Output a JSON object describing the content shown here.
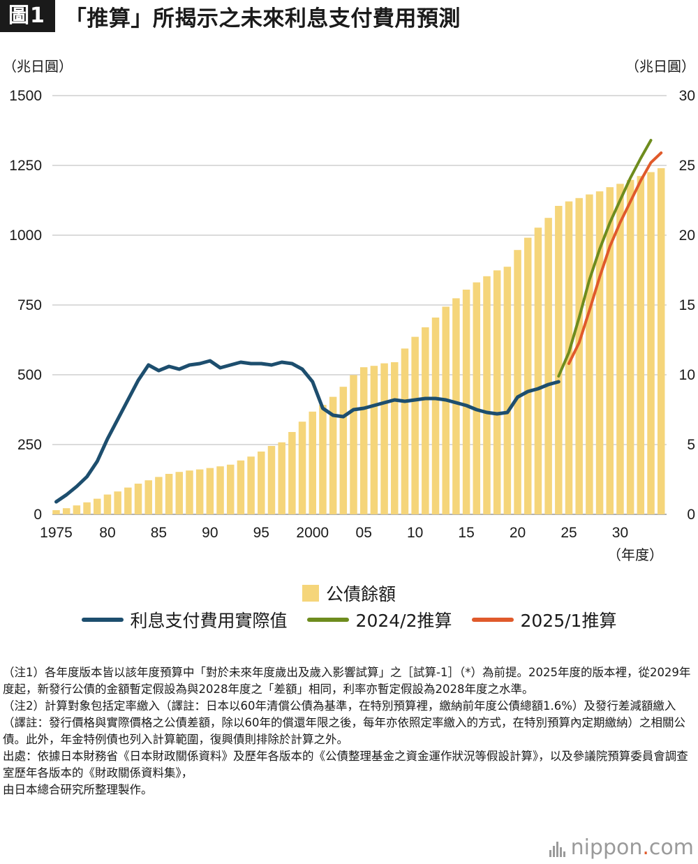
{
  "header": {
    "badge": "圖1",
    "title": "「推算」所揭示之未來利息支付費用預測"
  },
  "axes": {
    "left_unit": "（兆日圓）",
    "right_unit": "（兆日圓）",
    "x_unit": "（年度）"
  },
  "legend": {
    "bar_label": "公債餘額",
    "line_actual_label": "利息支付費用實際值",
    "line_2024_label": "2024/2推算",
    "line_2025_label": "2025/1推算"
  },
  "colors": {
    "bar": "#f5d57a",
    "actual": "#1d4e6e",
    "est_2024": "#6e8c1e",
    "est_2025": "#e05a2b",
    "grid": "#cfcfcf"
  },
  "chart_data": {
    "type": "bar+line",
    "x_range": [
      1975,
      2034
    ],
    "left_ylim": [
      0,
      1500
    ],
    "right_ylim": [
      0,
      30
    ],
    "left_ticks": [
      "1500",
      "1250",
      "1000",
      "750",
      "500",
      "250",
      "0"
    ],
    "right_ticks": [
      "30",
      "25",
      "20",
      "15",
      "10",
      "5",
      "0"
    ],
    "x_ticks": [
      "1975",
      "80",
      "85",
      "90",
      "95",
      "2000",
      "05",
      "10",
      "15",
      "20",
      "25",
      "30"
    ],
    "grid": true,
    "bars": {
      "name": "公債餘額",
      "axis": "left",
      "years": [
        1975,
        1976,
        1977,
        1978,
        1979,
        1980,
        1981,
        1982,
        1983,
        1984,
        1985,
        1986,
        1987,
        1988,
        1989,
        1990,
        1991,
        1992,
        1993,
        1994,
        1995,
        1996,
        1997,
        1998,
        1999,
        2000,
        2001,
        2002,
        2003,
        2004,
        2005,
        2006,
        2007,
        2008,
        2009,
        2010,
        2011,
        2012,
        2013,
        2014,
        2015,
        2016,
        2017,
        2018,
        2019,
        2020,
        2021,
        2022,
        2023,
        2024,
        2025,
        2026,
        2027,
        2028,
        2029,
        2030,
        2031,
        2032,
        2033,
        2034
      ],
      "values": [
        15,
        22,
        32,
        43,
        56,
        71,
        82,
        96,
        110,
        122,
        134,
        145,
        152,
        157,
        161,
        166,
        172,
        178,
        193,
        207,
        225,
        245,
        258,
        295,
        332,
        368,
        392,
        421,
        457,
        499,
        527,
        532,
        541,
        545,
        594,
        636,
        670,
        705,
        744,
        774,
        805,
        831,
        853,
        874,
        887,
        947,
        991,
        1027,
        1062,
        1105,
        1121,
        1133,
        1146,
        1157,
        1172,
        1184,
        1198,
        1212,
        1226,
        1240
      ]
    },
    "series": [
      {
        "name": "利息支付費用實際值",
        "axis": "right",
        "x": [
          1975,
          1976,
          1977,
          1978,
          1979,
          1980,
          1981,
          1982,
          1983,
          1984,
          1985,
          1986,
          1987,
          1988,
          1989,
          1990,
          1991,
          1992,
          1993,
          1994,
          1995,
          1996,
          1997,
          1998,
          1999,
          2000,
          2001,
          2002,
          2003,
          2004,
          2005,
          2006,
          2007,
          2008,
          2009,
          2010,
          2011,
          2012,
          2013,
          2014,
          2015,
          2016,
          2017,
          2018,
          2019,
          2020,
          2021,
          2022,
          2023,
          2024
        ],
        "y": [
          0.9,
          1.4,
          2.0,
          2.7,
          3.8,
          5.4,
          6.8,
          8.2,
          9.6,
          10.7,
          10.3,
          10.6,
          10.4,
          10.7,
          10.8,
          11.0,
          10.5,
          10.7,
          10.9,
          10.8,
          10.8,
          10.7,
          10.9,
          10.8,
          10.4,
          9.5,
          7.6,
          7.1,
          7.0,
          7.5,
          7.6,
          7.8,
          8.0,
          8.2,
          8.1,
          8.2,
          8.3,
          8.3,
          8.2,
          8.0,
          7.8,
          7.5,
          7.3,
          7.2,
          7.3,
          8.4,
          8.8,
          9.0,
          9.3,
          9.5
        ]
      },
      {
        "name": "2024/2推算",
        "axis": "right",
        "x": [
          2024,
          2025,
          2026,
          2027,
          2028,
          2029,
          2030,
          2031,
          2032,
          2033
        ],
        "y": [
          9.9,
          11.6,
          14.1,
          16.8,
          19.0,
          20.9,
          22.5,
          24.1,
          25.5,
          26.8
        ]
      },
      {
        "name": "2025/1推算",
        "axis": "right",
        "x": [
          2025,
          2026,
          2027,
          2028,
          2029,
          2030,
          2031,
          2032,
          2033,
          2034
        ],
        "y": [
          10.8,
          12.3,
          14.6,
          17.0,
          19.2,
          20.9,
          22.4,
          23.9,
          25.2,
          25.9
        ]
      }
    ]
  },
  "notes": [
    "（注1）各年度版本皆以該年度預算中「對於未來年度歲出及歲入影響試算」之［試算-1］（*）為前提。2025年度的版本裡，從2029年度起，新發行公債的金額暫定假設為與2028年度之「差額」相同，利率亦暫定假設為2028年度之水準。",
    "（注2）計算對象包括定率繳入（譯註：日本以60年清償公債為基準，在特別預算裡，繳納前年度公債總額1.6%）及發行差減額繳入（譯註：發行價格與實際價格之公債差額，除以60年的償還年限之後，每年亦依照定率繳入的方式，在特別預算內定期繳納）之相關公債。此外，年金特例債也列入計算範圍，復興債則排除於計算之外。",
    "出處：依據日本財務省《日本財政關係資料》及歷年各版本的《公債整理基金之資金運作狀況等假設計算》，以及參議院預算委員會調查室歷年各版本的《財政關係資料集》，",
    "由日本總合研究所整理製作。"
  ],
  "logo": {
    "text_main": "nippon",
    "text_dot": ".",
    "text_tld": "com"
  }
}
